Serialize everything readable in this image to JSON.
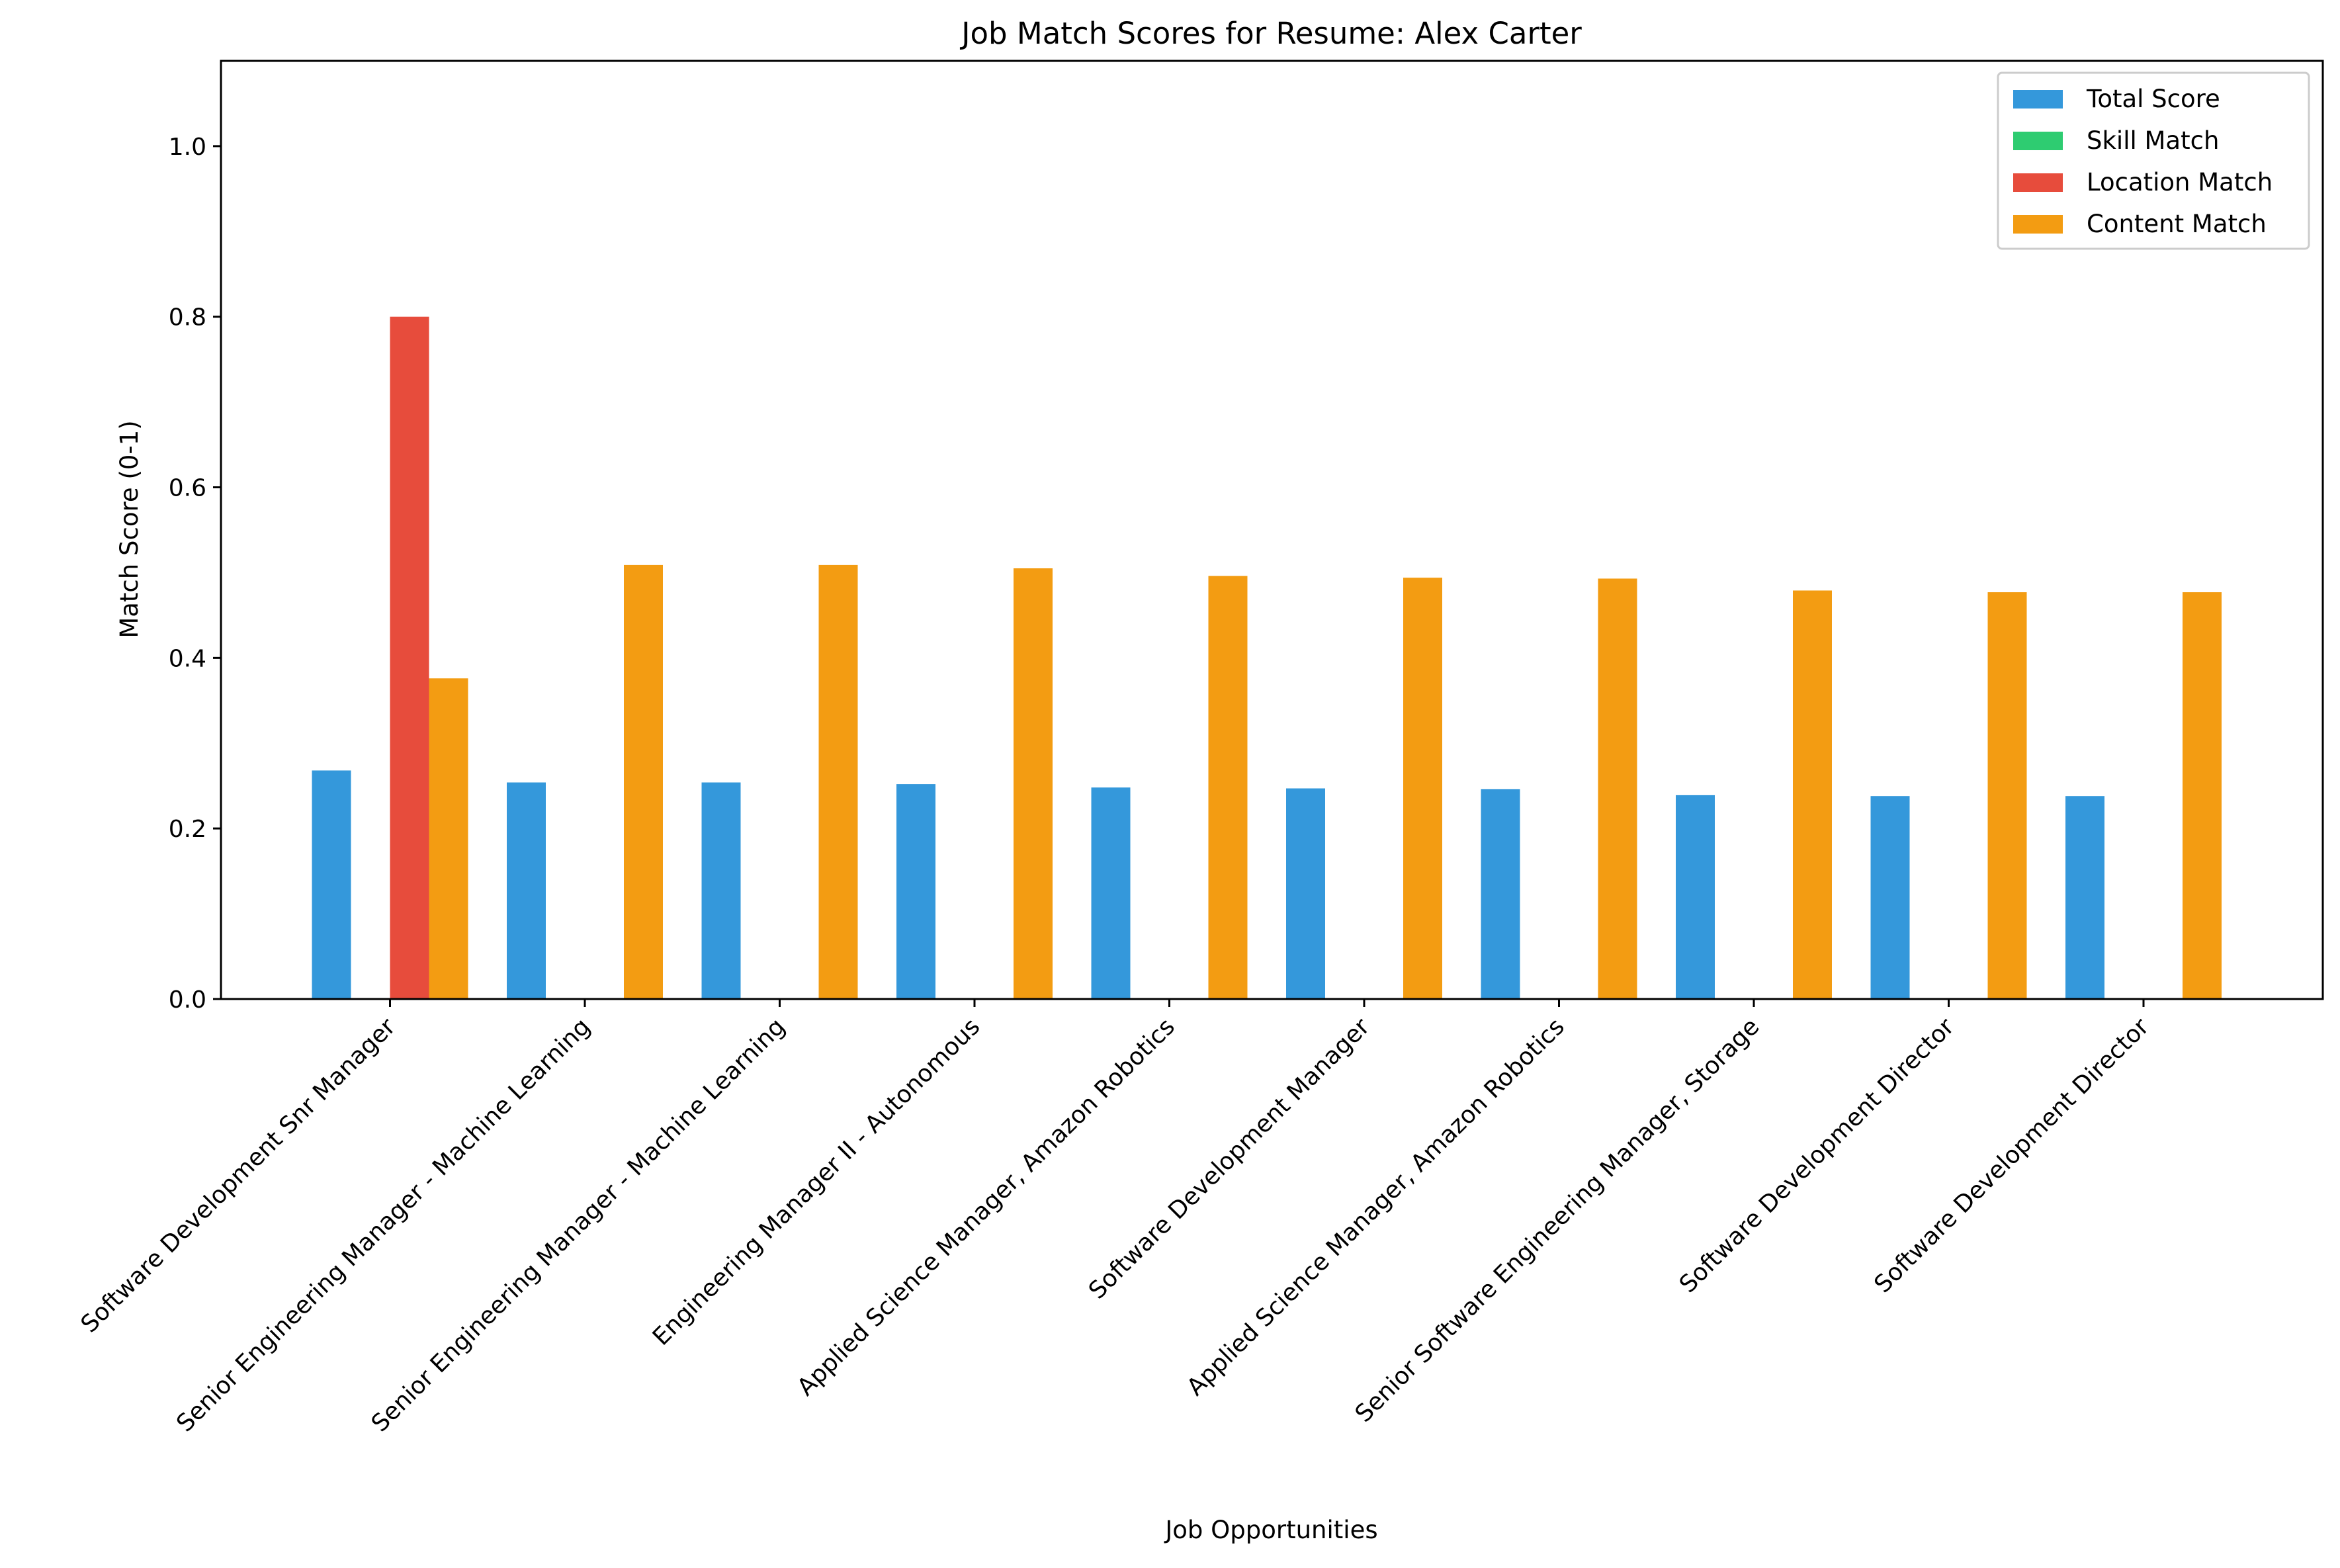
{
  "chart_data": {
    "type": "bar",
    "title": "Job Match Scores for Resume: Alex Carter",
    "xlabel": "Job Opportunities",
    "ylabel": "Match Score (0-1)",
    "ylim": [
      0,
      1.1
    ],
    "yticks": [
      "0.0",
      "0.2",
      "0.4",
      "0.6",
      "0.8",
      "1.0"
    ],
    "grid": false,
    "legend_position": "top-right",
    "categories": [
      "Software Development Snr Manager",
      "Senior Engineering Manager - Machine Learning",
      "Senior Engineering Manager - Machine Learning",
      "Engineering Manager II - Autonomous",
      "Applied Science Manager, Amazon Robotics",
      "Software Development Manager",
      "Applied Science Manager, Amazon Robotics",
      "Senior Software Engineering Manager, Storage",
      "Software Development Director",
      "Software Development Director"
    ],
    "series": [
      {
        "name": "Total Score",
        "color": "#3498db",
        "values": [
          0.268,
          0.254,
          0.254,
          0.252,
          0.248,
          0.247,
          0.246,
          0.239,
          0.238,
          0.238
        ]
      },
      {
        "name": "Skill Match",
        "color": "#2ecc71",
        "values": [
          0,
          0,
          0,
          0,
          0,
          0,
          0,
          0,
          0,
          0
        ]
      },
      {
        "name": "Location Match",
        "color": "#e74c3c",
        "values": [
          0.8,
          0,
          0,
          0,
          0,
          0,
          0,
          0,
          0,
          0
        ]
      },
      {
        "name": "Content Match",
        "color": "#f39c12",
        "values": [
          0.376,
          0.509,
          0.509,
          0.505,
          0.496,
          0.494,
          0.493,
          0.479,
          0.477,
          0.477
        ]
      }
    ]
  }
}
